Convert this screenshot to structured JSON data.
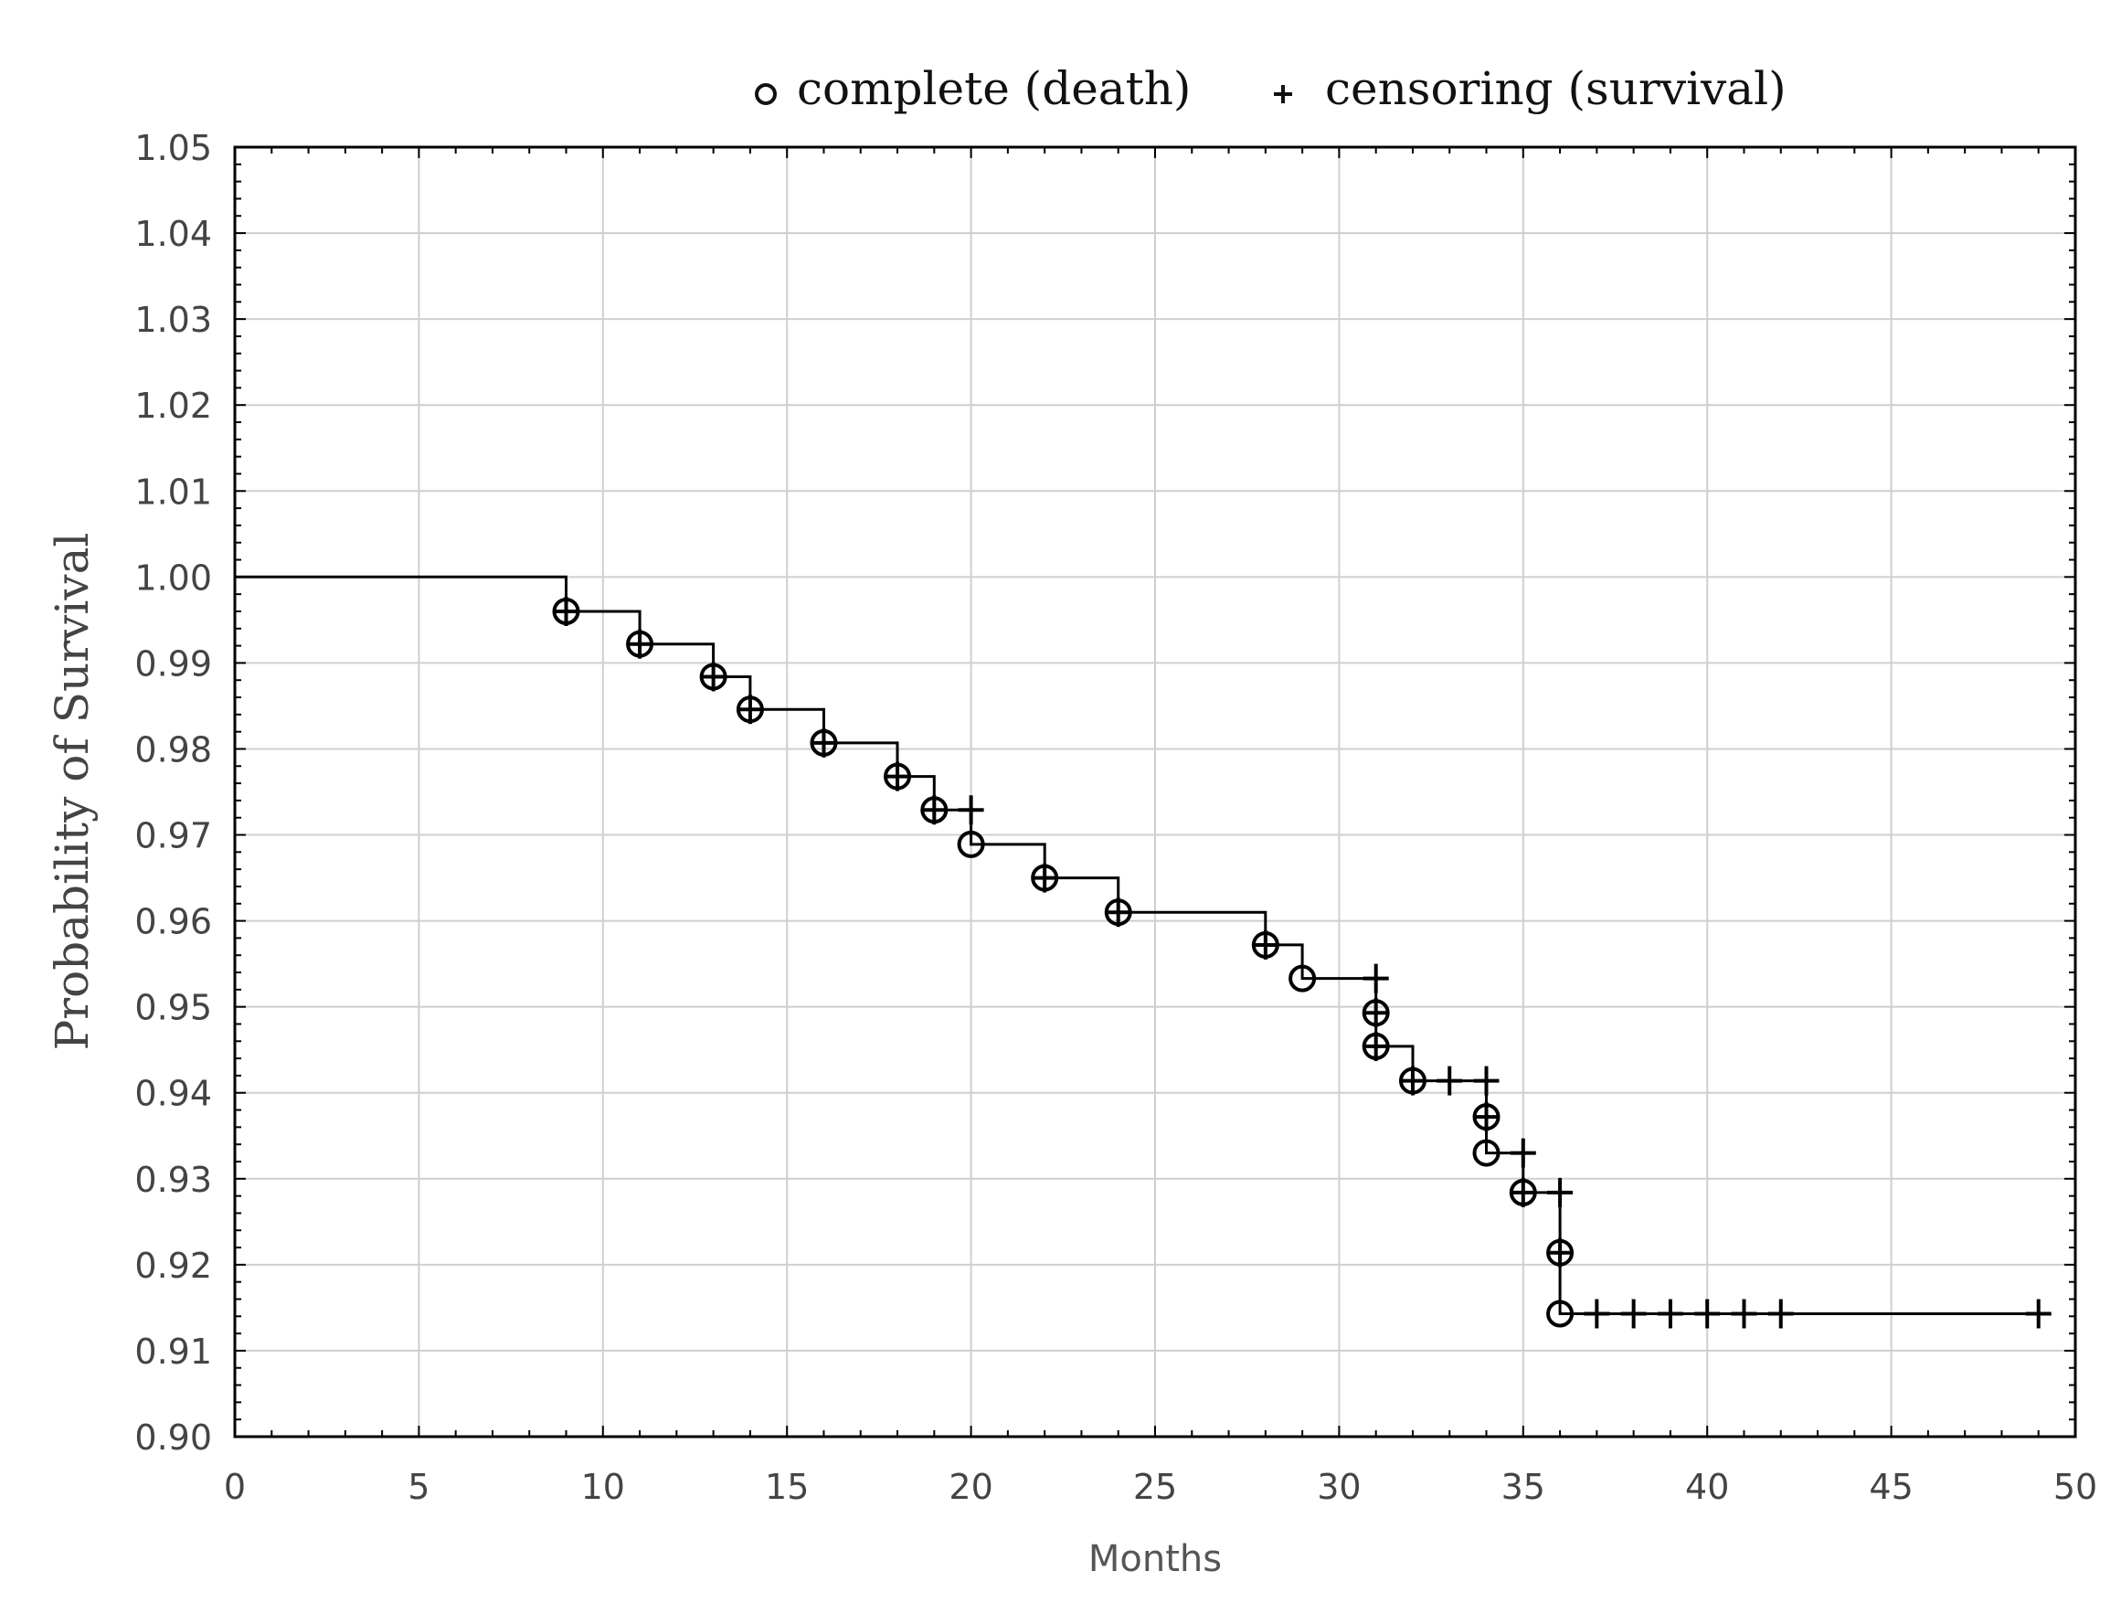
{
  "chart_data": {
    "type": "line",
    "subtype": "kaplan-meier",
    "xlabel": "Months",
    "ylabel": "Probability of Survival",
    "xlim": [
      0,
      50
    ],
    "ylim": [
      0.9,
      1.05
    ],
    "x_ticks": [
      0,
      5,
      10,
      15,
      20,
      25,
      30,
      35,
      40,
      45,
      50
    ],
    "x_tick_labels": [
      "0",
      "5",
      "10",
      "15",
      "20",
      "25",
      "30",
      "35",
      "40",
      "45",
      "50"
    ],
    "y_ticks": [
      0.9,
      0.91,
      0.92,
      0.93,
      0.94,
      0.95,
      0.96,
      0.97,
      0.98,
      0.99,
      1.0,
      1.01,
      1.02,
      1.03,
      1.04,
      1.05
    ],
    "y_tick_labels": [
      "0.90",
      "0.91",
      "0.92",
      "0.93",
      "0.94",
      "0.95",
      "0.96",
      "0.97",
      "0.98",
      "0.99",
      "1.00",
      "1.01",
      "1.02",
      "1.03",
      "1.04",
      "1.05"
    ],
    "grid": true,
    "legend": {
      "position": "top",
      "entries": [
        {
          "symbol": "circle",
          "label": "complete (death)"
        },
        {
          "symbol": "plus",
          "label": "censoring (survival)"
        }
      ]
    },
    "step_curve": [
      [
        0,
        1.0
      ],
      [
        9,
        1.0
      ],
      [
        9,
        0.996
      ],
      [
        11,
        0.996
      ],
      [
        11,
        0.9922
      ],
      [
        13,
        0.9922
      ],
      [
        13,
        0.9884
      ],
      [
        14,
        0.9884
      ],
      [
        14,
        0.9846
      ],
      [
        16,
        0.9846
      ],
      [
        16,
        0.9807
      ],
      [
        18,
        0.9807
      ],
      [
        18,
        0.9768
      ],
      [
        19,
        0.9768
      ],
      [
        19,
        0.9729
      ],
      [
        20,
        0.9729
      ],
      [
        20,
        0.9689
      ],
      [
        22,
        0.9689
      ],
      [
        22,
        0.965
      ],
      [
        24,
        0.965
      ],
      [
        24,
        0.961
      ],
      [
        28,
        0.961
      ],
      [
        28,
        0.9572
      ],
      [
        29,
        0.9572
      ],
      [
        29,
        0.9533
      ],
      [
        31,
        0.9533
      ],
      [
        31,
        0.9454
      ],
      [
        32,
        0.9454
      ],
      [
        32,
        0.9414
      ],
      [
        34,
        0.9414
      ],
      [
        34,
        0.933
      ],
      [
        35,
        0.933
      ],
      [
        35,
        0.9284
      ],
      [
        36,
        0.9284
      ],
      [
        36,
        0.9143
      ],
      [
        49,
        0.9143
      ]
    ],
    "deaths": [
      [
        9,
        0.996
      ],
      [
        11,
        0.9922
      ],
      [
        13,
        0.9884
      ],
      [
        14,
        0.9846
      ],
      [
        16,
        0.9807
      ],
      [
        18,
        0.9768
      ],
      [
        19,
        0.9729
      ],
      [
        20,
        0.9689
      ],
      [
        22,
        0.965
      ],
      [
        24,
        0.961
      ],
      [
        28,
        0.9572
      ],
      [
        29,
        0.9533
      ],
      [
        31,
        0.9493
      ],
      [
        31,
        0.9454
      ],
      [
        32,
        0.9414
      ],
      [
        34,
        0.9372
      ],
      [
        34,
        0.933
      ],
      [
        35,
        0.9284
      ],
      [
        36,
        0.9214
      ],
      [
        36,
        0.9143
      ]
    ],
    "censored": [
      [
        9,
        0.996
      ],
      [
        11,
        0.9922
      ],
      [
        13,
        0.9884
      ],
      [
        14,
        0.9846
      ],
      [
        16,
        0.9807
      ],
      [
        18,
        0.9768
      ],
      [
        19,
        0.9729
      ],
      [
        20,
        0.9729
      ],
      [
        22,
        0.965
      ],
      [
        24,
        0.961
      ],
      [
        28,
        0.9572
      ],
      [
        31,
        0.9533
      ],
      [
        31,
        0.9493
      ],
      [
        31,
        0.9454
      ],
      [
        32,
        0.9414
      ],
      [
        33,
        0.9414
      ],
      [
        34,
        0.9414
      ],
      [
        34,
        0.9372
      ],
      [
        35,
        0.933
      ],
      [
        35,
        0.9284
      ],
      [
        36,
        0.9284
      ],
      [
        36,
        0.9214
      ],
      [
        37,
        0.9143
      ],
      [
        38,
        0.9143
      ],
      [
        39,
        0.9143
      ],
      [
        40,
        0.9143
      ],
      [
        41,
        0.9143
      ],
      [
        42,
        0.9143
      ],
      [
        49,
        0.9143
      ]
    ]
  }
}
